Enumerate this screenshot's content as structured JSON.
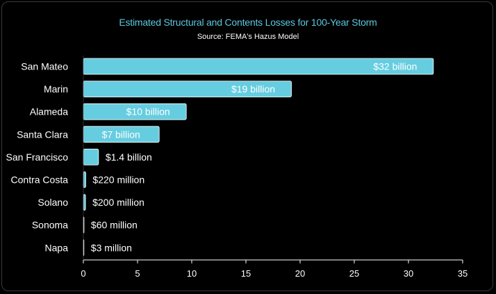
{
  "chart_data": {
    "type": "bar",
    "orientation": "horizontal",
    "title": "Estimated Structural and Contents Losses for 100-Year Storm",
    "subtitle": "Source: FEMA's Hazus Model",
    "categories": [
      "San Mateo",
      "Marin",
      "Alameda",
      "Santa Clara",
      "San Francisco",
      "Contra Costa",
      "Solano",
      "Sonoma",
      "Napa"
    ],
    "values": [
      32.3,
      19.2,
      9.5,
      7.0,
      1.4,
      0.22,
      0.2,
      0.06,
      0.003
    ],
    "value_labels": [
      "$32 billion",
      "$19 billion",
      "$10 billion",
      "$7 billion",
      "$1.4 billion",
      "$220 million",
      "$200 million",
      "$60 million",
      "$3 million"
    ],
    "xlim": [
      0,
      35
    ],
    "xticks": [
      0,
      5,
      10,
      15,
      20,
      25,
      30,
      35
    ],
    "xlabel": "",
    "ylabel": "",
    "grid": false,
    "legend": "none",
    "colors": {
      "bar": "#66cde0",
      "bar_edge": "#ffffff",
      "title": "#5cc8e0",
      "text": "#ffffff",
      "background": "#000000",
      "axis": "#ffffff"
    }
  }
}
